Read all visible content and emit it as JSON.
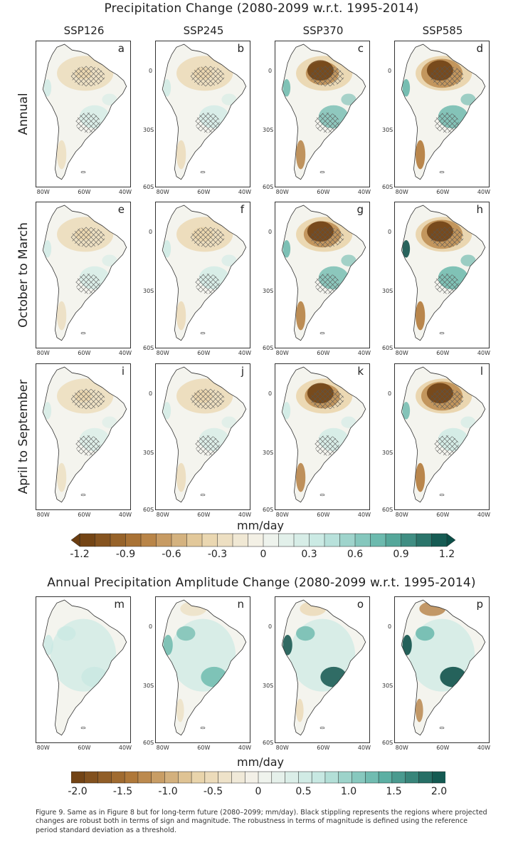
{
  "title_top": "Precipitation Change (2080-2099 w.r.t. 1995-2014)",
  "title_bottom": "Annual Precipitation Amplitude Change (2080-2099 w.r.t. 1995-2014)",
  "columns": [
    "SSP126",
    "SSP245",
    "SSP370",
    "SSP585"
  ],
  "rows": [
    "Annual",
    "October to March",
    "April to September"
  ],
  "lat_ticks": [
    "0",
    "30S",
    "60S"
  ],
  "lon_ticks": [
    "80W",
    "60W",
    "40W"
  ],
  "panel_letters": [
    "a",
    "b",
    "c",
    "d",
    "e",
    "f",
    "g",
    "h",
    "i",
    "j",
    "k",
    "l",
    "m",
    "n",
    "o",
    "p"
  ],
  "colorbar1": {
    "unit": "mm/day",
    "ticks": [
      "-1.2",
      "-0.9",
      "-0.6",
      "-0.3",
      "0",
      "0.3",
      "0.6",
      "0.9",
      "1.2"
    ],
    "min": -1.2,
    "max": 1.2,
    "extend": "both"
  },
  "colorbar2": {
    "unit": "mm/day",
    "ticks": [
      "-2.0",
      "-1.5",
      "-1.0",
      "-0.5",
      "0",
      "0.5",
      "1.0",
      "1.5",
      "2.0"
    ],
    "min": -2.0,
    "max": 2.0
  },
  "caption": "Figure 9. Same as in Figure 8 but for long-term future (2080–2099; mm/day). Black stippling represents the regions where projected changes are robust both in terms of sign and magnitude. The robustness in terms of magnitude is defined using the reference period standard deviation as a threshold.",
  "colors": {
    "dry_dark": "#6b3d10",
    "dry_mid": "#b27a3a",
    "dry_light": "#e9d3a8",
    "neutral": "#f4f4ee",
    "wet_light": "#c5e8e2",
    "wet_mid": "#5fb3a6",
    "wet_dark": "#0b4f48"
  },
  "chart_data": {
    "type": "heatmap",
    "description_fields": {
      "scenarios": [
        "SSP126",
        "SSP245",
        "SSP370",
        "SSP585"
      ],
      "seasons": [
        "Annual",
        "October to March",
        "April to September",
        "Annual Precipitation Amplitude"
      ]
    },
    "intensity_by_panel": {
      "drying": [
        [
          0.3,
          0.45,
          0.8,
          1.0
        ],
        [
          0.35,
          0.5,
          0.9,
          1.0
        ],
        [
          0.25,
          0.45,
          0.85,
          1.0
        ],
        [
          0.05,
          0.15,
          0.5,
          0.7
        ]
      ],
      "wetting": [
        [
          0.25,
          0.35,
          0.55,
          0.7
        ],
        [
          0.25,
          0.4,
          0.6,
          0.75
        ],
        [
          0.1,
          0.2,
          0.4,
          0.5
        ],
        [
          0.45,
          0.6,
          0.8,
          0.95
        ]
      ]
    },
    "units": "mm/day"
  }
}
